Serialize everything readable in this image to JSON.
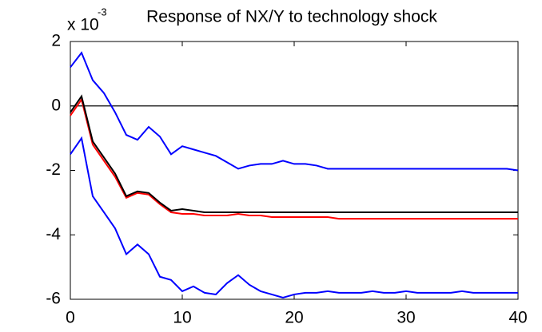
{
  "chart_data": {
    "type": "line",
    "title": "Response of NX/Y to technology shock",
    "y_scale_label": "x 10",
    "y_scale_exponent": "-3",
    "x": [
      0,
      1,
      2,
      3,
      4,
      5,
      6,
      7,
      8,
      9,
      10,
      11,
      12,
      13,
      14,
      15,
      16,
      17,
      18,
      19,
      20,
      21,
      22,
      23,
      24,
      25,
      26,
      27,
      28,
      29,
      30,
      31,
      32,
      33,
      34,
      35,
      36,
      37,
      38,
      39,
      40
    ],
    "series": [
      {
        "color": "#0000ff",
        "values": [
          1.2,
          1.65,
          0.8,
          0.4,
          -0.2,
          -0.9,
          -1.05,
          -0.65,
          -0.95,
          -1.5,
          -1.25,
          -1.35,
          -1.45,
          -1.55,
          -1.75,
          -1.95,
          -1.85,
          -1.8,
          -1.8,
          -1.7,
          -1.8,
          -1.8,
          -1.85,
          -1.95,
          -1.95,
          -1.95,
          -1.95,
          -1.95,
          -1.95,
          -1.95,
          -1.95,
          -1.95,
          -1.95,
          -1.95,
          -1.95,
          -1.95,
          -1.95,
          -1.95,
          -1.95,
          -1.95,
          -2.0
        ]
      },
      {
        "color": "#0000ff",
        "values": [
          -1.5,
          -1.0,
          -2.8,
          -3.3,
          -3.8,
          -4.6,
          -4.3,
          -4.6,
          -5.3,
          -5.4,
          -5.75,
          -5.6,
          -5.8,
          -5.85,
          -5.5,
          -5.25,
          -5.55,
          -5.75,
          -5.85,
          -5.95,
          -5.85,
          -5.8,
          -5.8,
          -5.75,
          -5.8,
          -5.8,
          -5.8,
          -5.75,
          -5.8,
          -5.8,
          -5.75,
          -5.8,
          -5.8,
          -5.8,
          -5.8,
          -5.75,
          -5.8,
          -5.8,
          -5.8,
          -5.8,
          -5.8
        ]
      },
      {
        "color": "#ff0000",
        "values": [
          -0.3,
          0.2,
          -1.2,
          -1.7,
          -2.2,
          -2.85,
          -2.7,
          -2.75,
          -3.05,
          -3.3,
          -3.35,
          -3.35,
          -3.4,
          -3.4,
          -3.4,
          -3.35,
          -3.4,
          -3.4,
          -3.45,
          -3.45,
          -3.45,
          -3.45,
          -3.45,
          -3.45,
          -3.5,
          -3.5,
          -3.5,
          -3.5,
          -3.5,
          -3.5,
          -3.5,
          -3.5,
          -3.5,
          -3.5,
          -3.5,
          -3.5,
          -3.5,
          -3.5,
          -3.5,
          -3.5,
          -3.5
        ]
      },
      {
        "color": "#000000",
        "values": [
          -0.2,
          0.3,
          -1.1,
          -1.6,
          -2.1,
          -2.8,
          -2.65,
          -2.7,
          -3.0,
          -3.25,
          -3.2,
          -3.25,
          -3.3,
          -3.3,
          -3.3,
          -3.3,
          -3.3,
          -3.3,
          -3.3,
          -3.3,
          -3.3,
          -3.3,
          -3.3,
          -3.3,
          -3.3,
          -3.3,
          -3.3,
          -3.3,
          -3.3,
          -3.3,
          -3.3,
          -3.3,
          -3.3,
          -3.3,
          -3.3,
          -3.3,
          -3.3,
          -3.3,
          -3.3,
          -3.3,
          -3.3
        ]
      }
    ],
    "hline": 0,
    "xlim": [
      0,
      40
    ],
    "xticks": [
      0,
      10,
      20,
      30,
      40
    ],
    "ylim": [
      -6,
      2
    ],
    "yticks": [
      -6,
      -4,
      -2,
      0,
      2
    ]
  }
}
